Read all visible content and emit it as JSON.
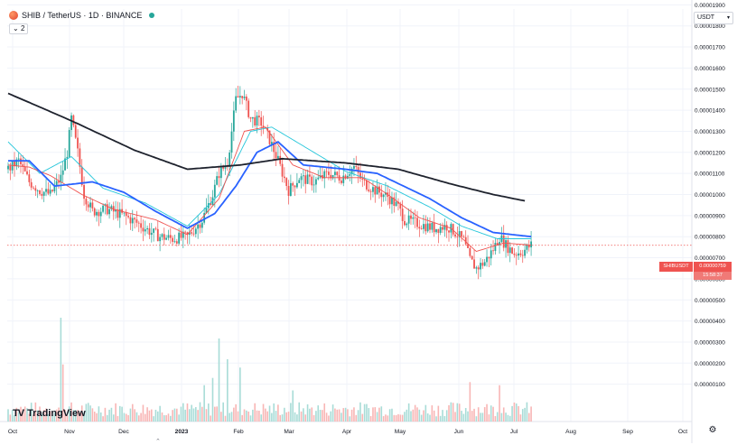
{
  "header": {
    "symbol_title": "SHIB / TetherUS · 1D · BINANCE",
    "indicators_count": "2"
  },
  "toolbar": {
    "currency": "USDT"
  },
  "price_label": {
    "symbol": "SHIBUSDT",
    "price": "0.00000759",
    "countdown": "15:58:37"
  },
  "branding": {
    "logo_text": "TradingView"
  },
  "colors": {
    "up": "#26a69a",
    "down": "#ef5350",
    "ma_fast": "#ef5350",
    "ma_mid": "#26c6da",
    "ma_blue": "#2962ff",
    "ma_slow": "#1e222d",
    "price_line": "#ef5350",
    "grid": "#f0f3fa"
  },
  "chart_data": {
    "type": "candlestick",
    "symbol": "SHIB / TetherUS",
    "interval": "1D",
    "exchange": "BINANCE",
    "x_tick_labels": [
      "Oct",
      "Nov",
      "Dec",
      "2023",
      "Feb",
      "Mar",
      "Apr",
      "May",
      "Jun",
      "Jul",
      "Aug",
      "Sep",
      "Oct"
    ],
    "y_tick_labels": [
      "0.00001900",
      "0.00001800",
      "0.00001700",
      "0.00001600",
      "0.00001500",
      "0.00001400",
      "0.00001300",
      "0.00001200",
      "0.00001100",
      "0.00001000",
      "0.00000900",
      "0.00000800",
      "0.00000700",
      "0.00000600",
      "0.00000500",
      "0.00000400",
      "0.00000300",
      "0.00000200",
      "0.00000100"
    ],
    "y_tick_values": [
      19,
      18,
      17,
      16,
      15,
      14,
      13,
      12,
      11,
      10,
      9,
      8,
      7,
      6,
      5,
      4,
      3,
      2,
      1
    ],
    "price_unit": "×1e-6 USDT",
    "ylim": [
      0,
      19.6
    ],
    "current_price": 7.59,
    "grid": true,
    "price_key_points": [
      {
        "t": 0,
        "v": 11.2
      },
      {
        "t": 5,
        "v": 11.6
      },
      {
        "t": 10,
        "v": 10.6
      },
      {
        "t": 15,
        "v": 10.2
      },
      {
        "t": 20,
        "v": 10.0
      },
      {
        "t": 25,
        "v": 10.8
      },
      {
        "t": 28,
        "v": 12.0
      },
      {
        "t": 30,
        "v": 13.6
      },
      {
        "t": 33,
        "v": 12.0
      },
      {
        "t": 36,
        "v": 10.0
      },
      {
        "t": 40,
        "v": 9.2
      },
      {
        "t": 47,
        "v": 9.3
      },
      {
        "t": 55,
        "v": 9.0
      },
      {
        "t": 62,
        "v": 8.6
      },
      {
        "t": 68,
        "v": 8.2
      },
      {
        "t": 72,
        "v": 8.0
      },
      {
        "t": 78,
        "v": 7.9
      },
      {
        "t": 85,
        "v": 8.0
      },
      {
        "t": 92,
        "v": 8.8
      },
      {
        "t": 97,
        "v": 10.0
      },
      {
        "t": 100,
        "v": 11.0
      },
      {
        "t": 104,
        "v": 11.5
      },
      {
        "t": 108,
        "v": 14.5
      },
      {
        "t": 111,
        "v": 14.8
      },
      {
        "t": 115,
        "v": 13.6
      },
      {
        "t": 120,
        "v": 13.4
      },
      {
        "t": 124,
        "v": 12.6
      },
      {
        "t": 128,
        "v": 11.6
      },
      {
        "t": 133,
        "v": 10.2
      },
      {
        "t": 138,
        "v": 10.8
      },
      {
        "t": 145,
        "v": 10.6
      },
      {
        "t": 152,
        "v": 11.0
      },
      {
        "t": 158,
        "v": 10.8
      },
      {
        "t": 164,
        "v": 11.3
      },
      {
        "t": 168,
        "v": 10.6
      },
      {
        "t": 174,
        "v": 10.2
      },
      {
        "t": 180,
        "v": 9.9
      },
      {
        "t": 185,
        "v": 9.4
      },
      {
        "t": 188,
        "v": 8.8
      },
      {
        "t": 195,
        "v": 8.6
      },
      {
        "t": 202,
        "v": 8.4
      },
      {
        "t": 208,
        "v": 8.5
      },
      {
        "t": 212,
        "v": 8.2
      },
      {
        "t": 216,
        "v": 7.8
      },
      {
        "t": 219,
        "v": 6.9
      },
      {
        "t": 222,
        "v": 6.5
      },
      {
        "t": 226,
        "v": 6.8
      },
      {
        "t": 230,
        "v": 7.4
      },
      {
        "t": 233,
        "v": 8.0
      },
      {
        "t": 236,
        "v": 7.6
      },
      {
        "t": 240,
        "v": 7.2
      },
      {
        "t": 244,
        "v": 7.3
      },
      {
        "t": 248,
        "v": 7.6
      }
    ],
    "ma_200_key_points": [
      {
        "t": 0,
        "v": 14.8
      },
      {
        "t": 30,
        "v": 13.5
      },
      {
        "t": 60,
        "v": 12.1
      },
      {
        "t": 85,
        "v": 11.2
      },
      {
        "t": 110,
        "v": 11.4
      },
      {
        "t": 130,
        "v": 11.7
      },
      {
        "t": 160,
        "v": 11.5
      },
      {
        "t": 185,
        "v": 11.2
      },
      {
        "t": 210,
        "v": 10.5
      },
      {
        "t": 230,
        "v": 10.0
      },
      {
        "t": 245,
        "v": 9.7
      }
    ],
    "ma_blue_key_points": [
      {
        "t": 0,
        "v": 11.6
      },
      {
        "t": 10,
        "v": 11.6
      },
      {
        "t": 22,
        "v": 10.4
      },
      {
        "t": 40,
        "v": 10.6
      },
      {
        "t": 55,
        "v": 10.1
      },
      {
        "t": 70,
        "v": 9.2
      },
      {
        "t": 85,
        "v": 8.4
      },
      {
        "t": 98,
        "v": 9.1
      },
      {
        "t": 108,
        "v": 10.4
      },
      {
        "t": 118,
        "v": 12.0
      },
      {
        "t": 128,
        "v": 12.5
      },
      {
        "t": 140,
        "v": 11.4
      },
      {
        "t": 160,
        "v": 11.2
      },
      {
        "t": 175,
        "v": 11.0
      },
      {
        "t": 200,
        "v": 9.8
      },
      {
        "t": 215,
        "v": 8.9
      },
      {
        "t": 230,
        "v": 8.2
      },
      {
        "t": 248,
        "v": 8.0
      }
    ],
    "ma_cyan_key_points": [
      {
        "t": 0,
        "v": 12.5
      },
      {
        "t": 15,
        "v": 11.0
      },
      {
        "t": 30,
        "v": 11.8
      },
      {
        "t": 45,
        "v": 10.3
      },
      {
        "t": 65,
        "v": 9.6
      },
      {
        "t": 85,
        "v": 8.5
      },
      {
        "t": 100,
        "v": 10.0
      },
      {
        "t": 115,
        "v": 13.0
      },
      {
        "t": 125,
        "v": 13.2
      },
      {
        "t": 140,
        "v": 12.3
      },
      {
        "t": 160,
        "v": 11.1
      },
      {
        "t": 180,
        "v": 10.4
      },
      {
        "t": 200,
        "v": 9.4
      },
      {
        "t": 215,
        "v": 8.5
      },
      {
        "t": 232,
        "v": 7.9
      },
      {
        "t": 248,
        "v": 7.9
      }
    ],
    "ma_red_key_points": [
      {
        "t": 0,
        "v": 11.4
      },
      {
        "t": 10,
        "v": 11.3
      },
      {
        "t": 20,
        "v": 10.9
      },
      {
        "t": 35,
        "v": 10.0
      },
      {
        "t": 50,
        "v": 9.3
      },
      {
        "t": 70,
        "v": 8.8
      },
      {
        "t": 85,
        "v": 8.1
      },
      {
        "t": 100,
        "v": 9.8
      },
      {
        "t": 112,
        "v": 13.0
      },
      {
        "t": 122,
        "v": 13.2
      },
      {
        "t": 135,
        "v": 11.4
      },
      {
        "t": 150,
        "v": 10.8
      },
      {
        "t": 168,
        "v": 10.8
      },
      {
        "t": 180,
        "v": 10.0
      },
      {
        "t": 195,
        "v": 8.9
      },
      {
        "t": 210,
        "v": 8.4
      },
      {
        "t": 222,
        "v": 7.3
      },
      {
        "t": 235,
        "v": 7.7
      },
      {
        "t": 248,
        "v": 7.6
      }
    ],
    "volume_spikes": [
      {
        "t": 25,
        "v": 1.0
      },
      {
        "t": 26,
        "v": 0.55
      },
      {
        "t": 93,
        "v": 0.35
      },
      {
        "t": 97,
        "v": 0.42
      },
      {
        "t": 100,
        "v": 0.8
      },
      {
        "t": 104,
        "v": 0.6
      },
      {
        "t": 110,
        "v": 0.52
      },
      {
        "t": 135,
        "v": 0.3
      },
      {
        "t": 219,
        "v": 0.38
      },
      {
        "t": 233,
        "v": 0.35
      }
    ]
  }
}
